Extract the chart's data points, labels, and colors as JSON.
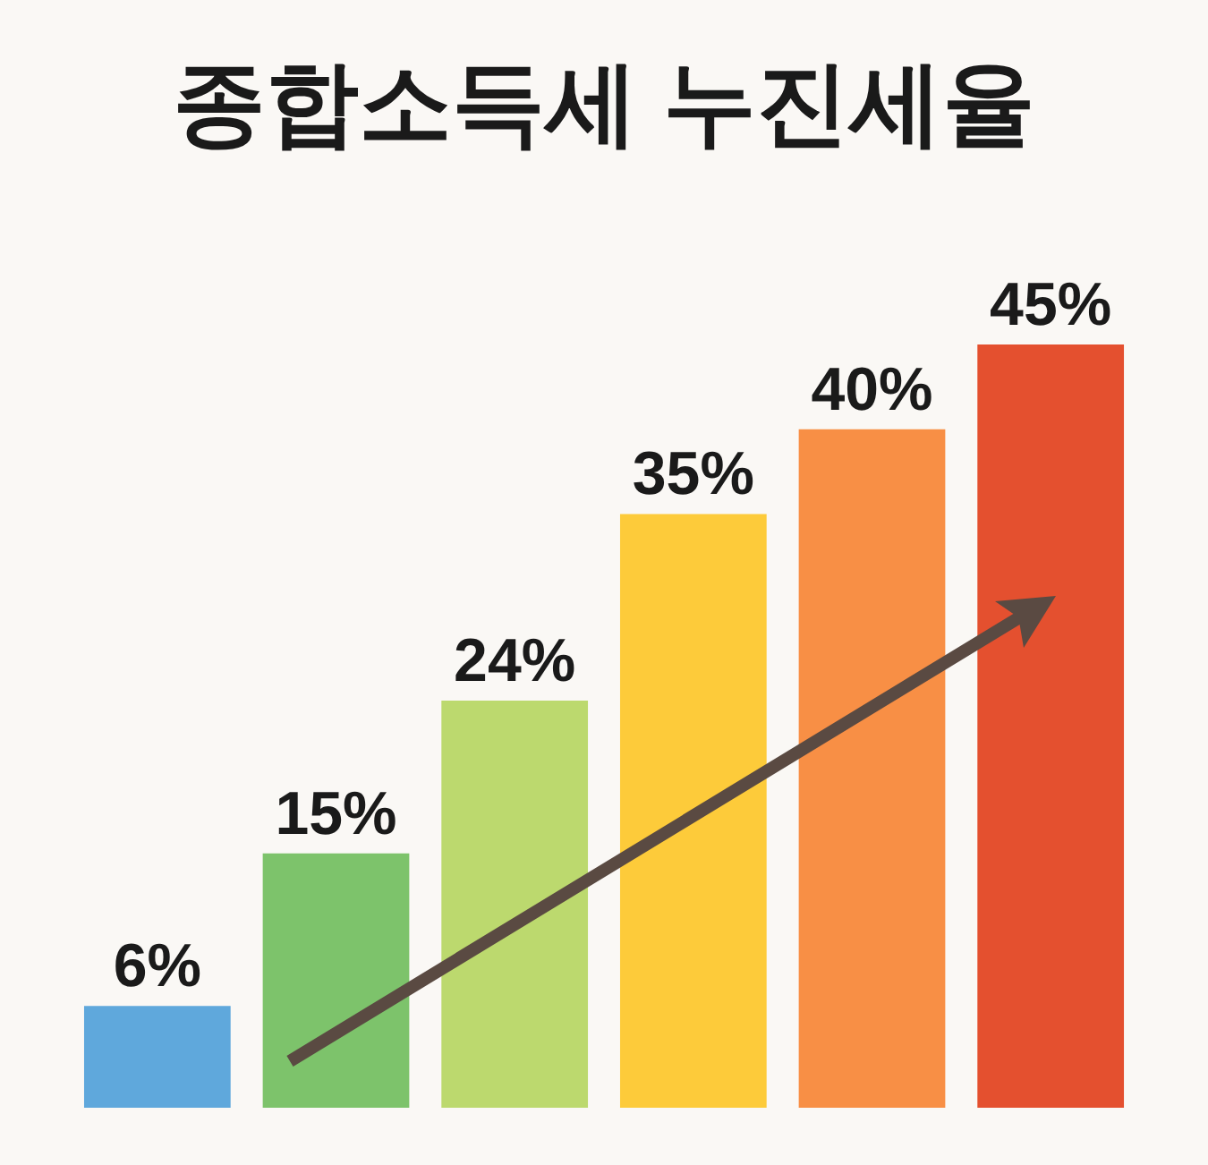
{
  "chart_data": {
    "type": "bar",
    "title": "종합소득세 누진세율",
    "categories": [
      null,
      null,
      null,
      null,
      null,
      null
    ],
    "values": [
      6,
      15,
      24,
      35,
      40,
      45
    ],
    "value_labels": [
      "6%",
      "15%",
      "24%",
      "35%",
      "40%",
      "45%"
    ],
    "colors": [
      "#5fa8dc",
      "#7dc36b",
      "#bcd96e",
      "#fdcb3a",
      "#f88f45",
      "#e4502f"
    ],
    "tick_labels": false
  }
}
